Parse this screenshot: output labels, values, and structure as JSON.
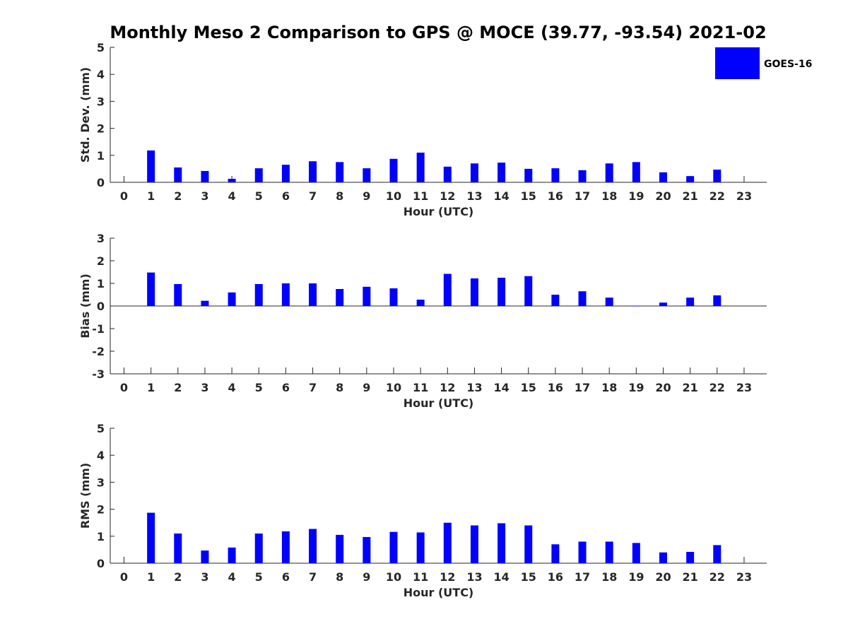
{
  "figure": {
    "title": "Monthly Meso 2 Comparison to GPS @ MOCE (39.77, -93.54) 2021-02",
    "legend": {
      "label": "GOES-16",
      "color": "#0000ff",
      "placement": "top-right"
    }
  },
  "chart_data": [
    {
      "type": "bar",
      "ylabel": "Std. Dev. (mm)",
      "xlabel": "Hour (UTC)",
      "categories": [
        "0",
        "1",
        "2",
        "3",
        "4",
        "5",
        "6",
        "7",
        "8",
        "9",
        "10",
        "11",
        "12",
        "13",
        "14",
        "15",
        "16",
        "17",
        "18",
        "19",
        "20",
        "21",
        "22",
        "23"
      ],
      "ylim": [
        0,
        5
      ],
      "yticks": [
        0,
        1,
        2,
        3,
        4,
        5
      ],
      "grid": false,
      "series": [
        {
          "name": "GOES-16",
          "color": "#0000ff",
          "values": [
            null,
            1.18,
            0.55,
            0.42,
            0.13,
            0.52,
            0.65,
            0.78,
            0.75,
            0.52,
            0.87,
            1.1,
            0.58,
            0.7,
            0.73,
            0.5,
            0.52,
            0.45,
            0.7,
            0.75,
            0.37,
            0.23,
            0.47,
            null
          ]
        }
      ]
    },
    {
      "type": "bar",
      "ylabel": "Bias (mm)",
      "xlabel": "Hour (UTC)",
      "categories": [
        "0",
        "1",
        "2",
        "3",
        "4",
        "5",
        "6",
        "7",
        "8",
        "9",
        "10",
        "11",
        "12",
        "13",
        "14",
        "15",
        "16",
        "17",
        "18",
        "19",
        "20",
        "21",
        "22",
        "23"
      ],
      "ylim": [
        -3,
        3
      ],
      "yticks": [
        -3,
        -2,
        -1,
        0,
        1,
        2,
        3
      ],
      "grid": false,
      "series": [
        {
          "name": "GOES-16",
          "color": "#0000ff",
          "values": [
            null,
            1.48,
            0.97,
            0.23,
            0.6,
            0.97,
            1.0,
            1.0,
            0.75,
            0.85,
            0.78,
            0.28,
            1.42,
            1.22,
            1.25,
            1.32,
            0.5,
            0.65,
            0.37,
            0.0,
            0.15,
            0.37,
            0.47,
            null
          ]
        }
      ]
    },
    {
      "type": "bar",
      "ylabel": "RMS (mm)",
      "xlabel": "Hour (UTC)",
      "categories": [
        "0",
        "1",
        "2",
        "3",
        "4",
        "5",
        "6",
        "7",
        "8",
        "9",
        "10",
        "11",
        "12",
        "13",
        "14",
        "15",
        "16",
        "17",
        "18",
        "19",
        "20",
        "21",
        "22",
        "23"
      ],
      "ylim": [
        0,
        5
      ],
      "yticks": [
        0,
        1,
        2,
        3,
        4,
        5
      ],
      "grid": false,
      "series": [
        {
          "name": "GOES-16",
          "color": "#0000ff",
          "values": [
            null,
            1.87,
            1.1,
            0.47,
            0.58,
            1.1,
            1.18,
            1.27,
            1.05,
            0.97,
            1.16,
            1.14,
            1.5,
            1.4,
            1.48,
            1.4,
            0.7,
            0.8,
            0.8,
            0.75,
            0.4,
            0.42,
            0.67,
            null
          ]
        }
      ]
    }
  ]
}
